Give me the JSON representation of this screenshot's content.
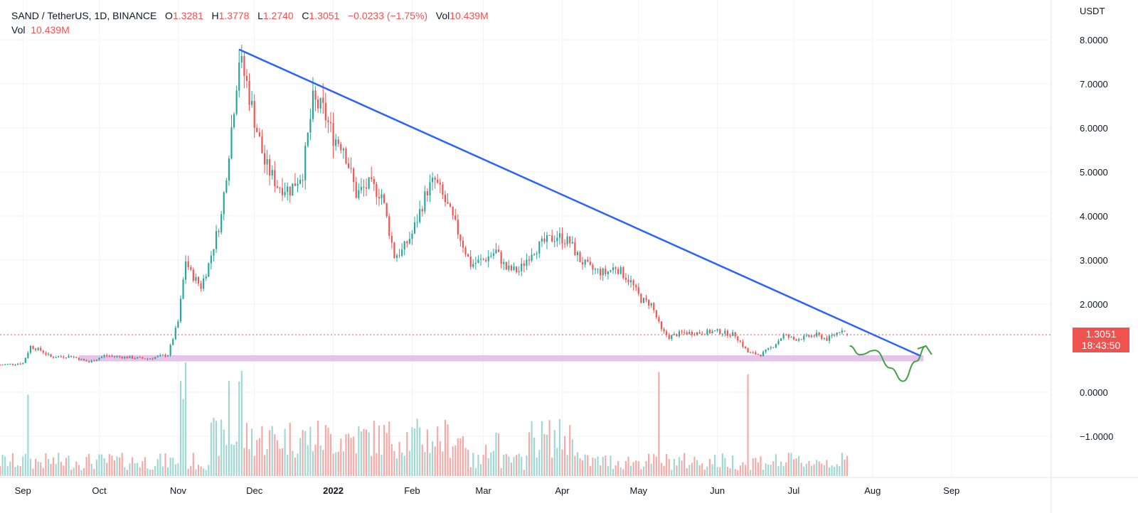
{
  "header": {
    "symbol": "SAND / TetherUS, 1D, BINANCE",
    "o_label": "O",
    "o_value": "1.3281",
    "h_label": "H",
    "h_value": "1.3778",
    "l_label": "L",
    "l_value": "1.2740",
    "c_label": "C",
    "c_value": "1.3051",
    "change": "−0.0233 (−1.75%)",
    "vol_label": "Vol",
    "vol_value": "10.439M",
    "vol_row_label": "Vol",
    "vol_row_value": "10.439M"
  },
  "price_axis": {
    "unit": "USDT",
    "ticks": [
      {
        "value": 8,
        "label": "8.0000"
      },
      {
        "value": 7,
        "label": "7.0000"
      },
      {
        "value": 6,
        "label": "6.0000"
      },
      {
        "value": 5,
        "label": "5.0000"
      },
      {
        "value": 4,
        "label": "4.0000"
      },
      {
        "value": 3,
        "label": "3.0000"
      },
      {
        "value": 2,
        "label": "2.0000"
      },
      {
        "value": 0,
        "label": "0.0000"
      },
      {
        "value": -1,
        "label": "−1.0000"
      }
    ],
    "current_price": "1.3051",
    "countdown": "18:43:50"
  },
  "time_axis": {
    "ticks": [
      {
        "date": "2021-09-01",
        "label": "Sep",
        "bold": false
      },
      {
        "date": "2021-10-01",
        "label": "Oct",
        "bold": false
      },
      {
        "date": "2021-11-01",
        "label": "Nov",
        "bold": false
      },
      {
        "date": "2021-12-01",
        "label": "Dec",
        "bold": false
      },
      {
        "date": "2022-01-01",
        "label": "2022",
        "bold": true
      },
      {
        "date": "2022-02-01",
        "label": "Feb",
        "bold": false
      },
      {
        "date": "2022-03-01",
        "label": "Mar",
        "bold": false
      },
      {
        "date": "2022-04-01",
        "label": "Apr",
        "bold": false
      },
      {
        "date": "2022-05-01",
        "label": "May",
        "bold": false
      },
      {
        "date": "2022-06-01",
        "label": "Jun",
        "bold": false
      },
      {
        "date": "2022-07-01",
        "label": "Jul",
        "bold": false
      },
      {
        "date": "2022-08-01",
        "label": "Aug",
        "bold": false
      },
      {
        "date": "2022-09-01",
        "label": "Sep",
        "bold": false
      }
    ]
  },
  "colors": {
    "up": "#26a69a",
    "down": "#ef5350",
    "up_volume": "#9fd8d2",
    "down_volume": "#f5a9a7",
    "trendline": "#2962ff",
    "support_zone": "#e1bee7",
    "projection": "#43a047",
    "grid": "#f0f3fa",
    "price_line": "#ef5350"
  },
  "chart_data": {
    "type": "candlestick",
    "symbol": "SAND / TetherUS",
    "interval": "1D",
    "exchange": "BINANCE",
    "y_unit": "USDT",
    "ylim": [
      -1.95,
      8.6
    ],
    "xlim": [
      "2021-08-23",
      "2022-09-24"
    ],
    "grid": true,
    "price_path": [
      [
        "2021-08-23",
        0.62
      ],
      [
        "2021-09-01",
        0.66
      ],
      [
        "2021-09-04",
        1.04
      ],
      [
        "2021-09-08",
        0.95
      ],
      [
        "2021-09-12",
        0.8
      ],
      [
        "2021-09-20",
        0.82
      ],
      [
        "2021-09-27",
        0.68
      ],
      [
        "2021-10-03",
        0.83
      ],
      [
        "2021-10-10",
        0.8
      ],
      [
        "2021-10-20",
        0.76
      ],
      [
        "2021-10-28",
        0.85
      ],
      [
        "2021-11-01",
        1.6
      ],
      [
        "2021-11-04",
        3.0
      ],
      [
        "2021-11-06",
        2.7
      ],
      [
        "2021-11-10",
        2.4
      ],
      [
        "2021-11-13",
        2.9
      ],
      [
        "2021-11-18",
        4.0
      ],
      [
        "2021-11-22",
        6.0
      ],
      [
        "2021-11-25",
        7.6
      ],
      [
        "2021-11-28",
        7.0
      ],
      [
        "2021-12-01",
        6.2
      ],
      [
        "2021-12-05",
        5.2
      ],
      [
        "2021-12-10",
        4.7
      ],
      [
        "2021-12-15",
        4.6
      ],
      [
        "2021-12-20",
        5.0
      ],
      [
        "2021-12-24",
        6.6
      ],
      [
        "2021-12-28",
        6.4
      ],
      [
        "2022-01-01",
        5.8
      ],
      [
        "2022-01-05",
        5.6
      ],
      [
        "2022-01-10",
        4.5
      ],
      [
        "2022-01-15",
        4.7
      ],
      [
        "2022-01-20",
        4.5
      ],
      [
        "2022-01-25",
        3.1
      ],
      [
        "2022-01-28",
        3.2
      ],
      [
        "2022-02-01",
        3.6
      ],
      [
        "2022-02-07",
        4.6
      ],
      [
        "2022-02-10",
        4.8
      ],
      [
        "2022-02-15",
        4.2
      ],
      [
        "2022-02-20",
        3.5
      ],
      [
        "2022-02-24",
        2.9
      ],
      [
        "2022-03-01",
        3.0
      ],
      [
        "2022-03-06",
        3.2
      ],
      [
        "2022-03-10",
        2.8
      ],
      [
        "2022-03-15",
        2.75
      ],
      [
        "2022-03-20",
        3.2
      ],
      [
        "2022-03-25",
        3.4
      ],
      [
        "2022-03-30",
        3.55
      ],
      [
        "2022-04-04",
        3.4
      ],
      [
        "2022-04-08",
        3.0
      ],
      [
        "2022-04-12",
        2.8
      ],
      [
        "2022-04-18",
        2.7
      ],
      [
        "2022-04-22",
        2.85
      ],
      [
        "2022-04-28",
        2.5
      ],
      [
        "2022-05-02",
        2.1
      ],
      [
        "2022-05-06",
        2.0
      ],
      [
        "2022-05-10",
        1.4
      ],
      [
        "2022-05-13",
        1.25
      ],
      [
        "2022-05-18",
        1.35
      ],
      [
        "2022-05-25",
        1.35
      ],
      [
        "2022-06-01",
        1.38
      ],
      [
        "2022-06-08",
        1.3
      ],
      [
        "2022-06-13",
        0.9
      ],
      [
        "2022-06-18",
        0.85
      ],
      [
        "2022-06-23",
        1.05
      ],
      [
        "2022-06-27",
        1.3
      ],
      [
        "2022-07-01",
        1.2
      ],
      [
        "2022-07-06",
        1.25
      ],
      [
        "2022-07-10",
        1.3
      ],
      [
        "2022-07-14",
        1.2
      ],
      [
        "2022-07-18",
        1.35
      ],
      [
        "2022-07-20",
        1.44
      ],
      [
        "2022-07-22",
        1.3051
      ]
    ],
    "volume_peak_dates": [
      "2021-09-03",
      "2021-11-02",
      "2021-11-03",
      "2021-11-04",
      "2021-11-21",
      "2021-11-25",
      "2021-11-26",
      "2022-05-09",
      "2022-06-13"
    ],
    "last_close": 1.3051,
    "annotations": {
      "trendline": {
        "from": [
          "2021-11-25",
          7.78
        ],
        "to": [
          "2022-08-20",
          0.82
        ]
      },
      "support_zone": {
        "from": "2021-09-23",
        "to": "2022-08-21",
        "bottom": 0.7,
        "top": 0.84
      },
      "projection": [
        [
          "2022-07-23",
          1.05
        ],
        [
          "2022-07-27",
          0.85
        ],
        [
          "2022-08-02",
          0.95
        ],
        [
          "2022-08-08",
          0.55
        ],
        [
          "2022-08-13",
          0.25
        ],
        [
          "2022-08-18",
          0.7
        ],
        [
          "2022-08-22",
          1.05
        ]
      ]
    }
  }
}
